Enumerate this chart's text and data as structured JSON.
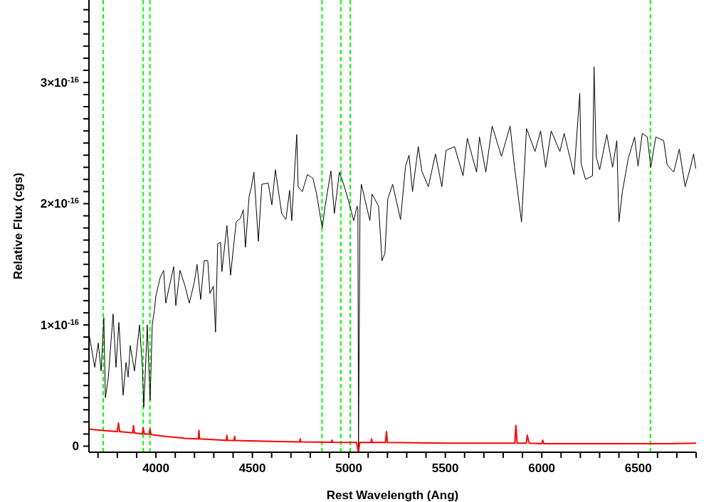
{
  "chart_data": {
    "type": "line",
    "xlabel": "Rest Wavelength (Ang)",
    "ylabel": "Relative Flux (cgs)",
    "xlim": [
      3653,
      6800
    ],
    "ylim": [
      -5e-18,
      3.68e-16
    ],
    "xticks": [
      {
        "value": 3700,
        "label": null
      },
      {
        "value": 3800,
        "label": null
      },
      {
        "value": 3900,
        "label": null
      },
      4000,
      {
        "value": 4100,
        "label": null
      },
      {
        "value": 4200,
        "label": null
      },
      {
        "value": 4300,
        "label": null
      },
      {
        "value": 4400,
        "label": null
      },
      4500,
      {
        "value": 4600,
        "label": null
      },
      {
        "value": 4700,
        "label": null
      },
      {
        "value": 4800,
        "label": null
      },
      {
        "value": 4900,
        "label": null
      },
      5000,
      {
        "value": 5100,
        "label": null
      },
      {
        "value": 5200,
        "label": null
      },
      {
        "value": 5300,
        "label": null
      },
      {
        "value": 5400,
        "label": null
      },
      5500,
      {
        "value": 5600,
        "label": null
      },
      {
        "value": 5700,
        "label": null
      },
      {
        "value": 5800,
        "label": null
      },
      {
        "value": 5900,
        "label": null
      },
      6000,
      {
        "value": 6100,
        "label": null
      },
      {
        "value": 6200,
        "label": null
      },
      {
        "value": 6300,
        "label": null
      },
      {
        "value": 6400,
        "label": null
      },
      6500,
      {
        "value": 6600,
        "label": null
      },
      {
        "value": 6700,
        "label": null
      },
      {
        "value": 6800,
        "label": null
      }
    ],
    "yticks": [
      0,
      {
        "value": 1e-17,
        "label": null
      },
      {
        "value": 2e-17,
        "label": null
      },
      {
        "value": 3e-17,
        "label": null
      },
      {
        "value": 4e-17,
        "label": null
      },
      {
        "value": 5e-17,
        "label": null
      },
      {
        "value": 6e-17,
        "label": null
      },
      {
        "value": 7e-17,
        "label": null
      },
      {
        "value": 8e-17,
        "label": null
      },
      {
        "value": 9e-17,
        "label": null
      },
      {
        "value": 1e-16,
        "label": "1×10$^{-16}$"
      },
      {
        "value": 1.1e-16,
        "label": null
      },
      {
        "value": 1.2e-16,
        "label": null
      },
      {
        "value": 1.3e-16,
        "label": null
      },
      {
        "value": 1.4e-16,
        "label": null
      },
      {
        "value": 1.5e-16,
        "label": null
      },
      {
        "value": 1.6e-16,
        "label": null
      },
      {
        "value": 1.7e-16,
        "label": null
      },
      {
        "value": 1.8e-16,
        "label": null
      },
      {
        "value": 1.9e-16,
        "label": null
      },
      {
        "value": 2e-16,
        "label": "2×10$^{-16}$"
      },
      {
        "value": 2.1e-16,
        "label": null
      },
      {
        "value": 2.2e-16,
        "label": null
      },
      {
        "value": 2.3e-16,
        "label": null
      },
      {
        "value": 2.4e-16,
        "label": null
      },
      {
        "value": 2.5e-16,
        "label": null
      },
      {
        "value": 2.6e-16,
        "label": null
      },
      {
        "value": 2.7e-16,
        "label": null
      },
      {
        "value": 2.8e-16,
        "label": null
      },
      {
        "value": 2.9e-16,
        "label": null
      },
      {
        "value": 3e-16,
        "label": "3×10$^{-16}$"
      },
      {
        "value": 3.1e-16,
        "label": null
      },
      {
        "value": 3.2e-16,
        "label": null
      },
      {
        "value": 3.3e-16,
        "label": null
      },
      {
        "value": 3.4e-16,
        "label": null
      },
      {
        "value": 3.5e-16,
        "label": null
      },
      {
        "value": 3.6e-16,
        "label": null
      }
    ],
    "marker": "none",
    "line_style": "solid",
    "ref_lines": [
      {
        "axis": "x",
        "value": 3727,
        "color": "#00ff00",
        "line_style": "dashed"
      },
      {
        "axis": "x",
        "value": 3934,
        "color": "#00ff00",
        "line_style": "dashed"
      },
      {
        "axis": "x",
        "value": 3969,
        "color": "#00ff00",
        "line_style": "dashed"
      },
      {
        "axis": "x",
        "value": 4861,
        "color": "#00ff00",
        "line_style": "dashed"
      },
      {
        "axis": "x",
        "value": 4959,
        "color": "#00ff00",
        "line_style": "dashed"
      },
      {
        "axis": "x",
        "value": 5007,
        "color": "#00ff00",
        "line_style": "dashed"
      },
      {
        "axis": "x",
        "value": 6563,
        "color": "#00ff00",
        "line_style": "dashed"
      }
    ],
    "series": [
      {
        "color": "#000000",
        "x": [
          3653,
          3683,
          3701,
          3716,
          3730,
          3738,
          3753,
          3778,
          3793,
          3808,
          3830,
          3845,
          3856,
          3867,
          3889,
          3915,
          3930,
          3937,
          3952,
          3955,
          3970,
          3981,
          3992,
          4000,
          4022,
          4040,
          4051,
          4092,
          4103,
          4125,
          4151,
          4173,
          4199,
          4213,
          4232,
          4250,
          4269,
          4280,
          4298,
          4309,
          4320,
          4335,
          4342,
          4368,
          4387,
          4416,
          4438,
          4453,
          4464,
          4483,
          4494,
          4508,
          4531,
          4549,
          4582,
          4601,
          4619,
          4652,
          4674,
          4693,
          4704,
          4730,
          4737,
          4759,
          4785,
          4814,
          4833,
          4862,
          4877,
          4907,
          4925,
          4951,
          4973,
          4999,
          5025,
          5043,
          5047,
          5050,
          5058,
          5065,
          5109,
          5120,
          5154,
          5172,
          5187,
          5202,
          5227,
          5268,
          5294,
          5312,
          5330,
          5360,
          5378,
          5412,
          5449,
          5482,
          5504,
          5548,
          5592,
          5614,
          5662,
          5677,
          5710,
          5743,
          5791,
          5836,
          5858,
          5895,
          5921,
          5965,
          5994,
          6020,
          6049,
          6094,
          6116,
          6167,
          6197,
          6204,
          6227,
          6263,
          6271,
          6282,
          6300,
          6337,
          6367,
          6389,
          6400,
          6418,
          6448,
          6481,
          6499,
          6521,
          6547,
          6565,
          6591,
          6632,
          6650,
          6684,
          6713,
          6743,
          6769,
          6787,
          6798
        ],
        "values": [
          9.3e-17,
          6.5e-17,
          8.5e-17,
          6.2e-17,
          1.06e-16,
          4e-17,
          5.6e-17,
          1.09e-16,
          6.5e-17,
          1.02e-16,
          4.2e-17,
          6.9e-17,
          5.7e-17,
          8.3e-17,
          6.2e-17,
          1e-16,
          6.5e-17,
          3.2e-17,
          8.7e-17,
          1e-16,
          3.8e-17,
          1e-16,
          1.12e-16,
          1.24e-16,
          1.39e-16,
          1.45e-16,
          1.18e-16,
          1.48e-16,
          1.16e-16,
          1.45e-16,
          1.32e-16,
          1.18e-16,
          1.35e-16,
          1.5e-16,
          1.21e-16,
          1.53e-16,
          1.53e-16,
          1.26e-16,
          1.32e-16,
          9.4e-17,
          1.67e-16,
          1.68e-16,
          1.44e-16,
          1.82e-16,
          1.41e-16,
          1.85e-16,
          1.88e-16,
          1.95e-16,
          1.64e-16,
          2.06e-16,
          2.13e-16,
          2.26e-16,
          1.69e-16,
          2.16e-16,
          2.17e-16,
          1.99e-16,
          2.28e-16,
          1.92e-16,
          1.87e-16,
          2.11e-16,
          1.86e-16,
          2.57e-16,
          2.14e-16,
          2.1e-16,
          2.24e-16,
          2.21e-16,
          2.08e-16,
          1.8e-16,
          1.98e-16,
          2.27e-16,
          1.92e-16,
          2.26e-16,
          2.16e-16,
          2.02e-16,
          1.86e-16,
          1.98e-16,
          1.95e-16,
          -4e-18,
          1.98e-16,
          2.16e-16,
          1.86e-16,
          2.08e-16,
          1.98e-16,
          1.53e-16,
          1.59e-16,
          2.04e-16,
          2.16e-16,
          1.87e-16,
          2.31e-16,
          2.4e-16,
          2.1e-16,
          2.47e-16,
          2.27e-16,
          2.14e-16,
          2.41e-16,
          2.14e-16,
          2.44e-16,
          2.47e-16,
          2.23e-16,
          2.54e-16,
          2.26e-16,
          2.55e-16,
          2.26e-16,
          2.64e-16,
          2.39e-16,
          2.64e-16,
          2.31e-16,
          1.85e-16,
          2.62e-16,
          2.43e-16,
          2.6e-16,
          2.3e-16,
          2.6e-16,
          2.43e-16,
          2.58e-16,
          2.24e-16,
          2.91e-16,
          2.33e-16,
          2.2e-16,
          2.23e-16,
          3.13e-16,
          2.39e-16,
          2.28e-16,
          2.57e-16,
          2.3e-16,
          2.52e-16,
          1.85e-16,
          2.1e-16,
          2.37e-16,
          2.55e-16,
          2.31e-16,
          2.58e-16,
          2.55e-16,
          2.3e-16,
          2.55e-16,
          2.52e-16,
          2.32e-16,
          2.26e-16,
          2.45e-16,
          2.14e-16,
          2.29e-16,
          2.41e-16,
          2.29e-16
        ]
      },
      {
        "color": "#ff0000",
        "x": [
          3653,
          3720,
          3800,
          3806,
          3812,
          3880,
          3884,
          3888,
          3930,
          3934,
          3940,
          3965,
          3969,
          3975,
          4050,
          4150,
          4220,
          4223,
          4226,
          4365,
          4368,
          4371,
          4405,
          4408,
          4411,
          4600,
          4745,
          4748,
          4751,
          4910,
          4913,
          4916,
          5040,
          5050,
          5056,
          5115,
          5118,
          5121,
          5190,
          5195,
          5200,
          5500,
          5860,
          5866,
          5872,
          5920,
          5925,
          5935,
          6000,
          6005,
          6010,
          6300,
          6650,
          6800
        ],
        "values": [
          1.4e-17,
          1.3e-17,
          1.2e-17,
          1.9e-17,
          1.2e-17,
          1.1e-17,
          1.7e-17,
          1.1e-17,
          1e-17,
          1.5e-17,
          1e-17,
          1e-17,
          1.4e-17,
          9.5e-18,
          8e-18,
          6.5e-18,
          6e-18,
          1.3e-17,
          6e-18,
          4.8e-18,
          9e-18,
          4.8e-18,
          4.7e-18,
          8e-18,
          4.7e-18,
          4e-18,
          3.5e-18,
          6e-18,
          3.5e-18,
          3.2e-18,
          5e-18,
          3.2e-18,
          3e-18,
          -5e-18,
          3e-18,
          3e-18,
          6e-18,
          3e-18,
          3e-18,
          1.2e-17,
          3e-18,
          2.5e-18,
          2.5e-18,
          1.7e-17,
          2.5e-18,
          2.5e-18,
          9e-18,
          2.5e-18,
          2e-18,
          5e-18,
          2e-18,
          2e-18,
          2e-18,
          2.5e-18
        ]
      }
    ]
  }
}
